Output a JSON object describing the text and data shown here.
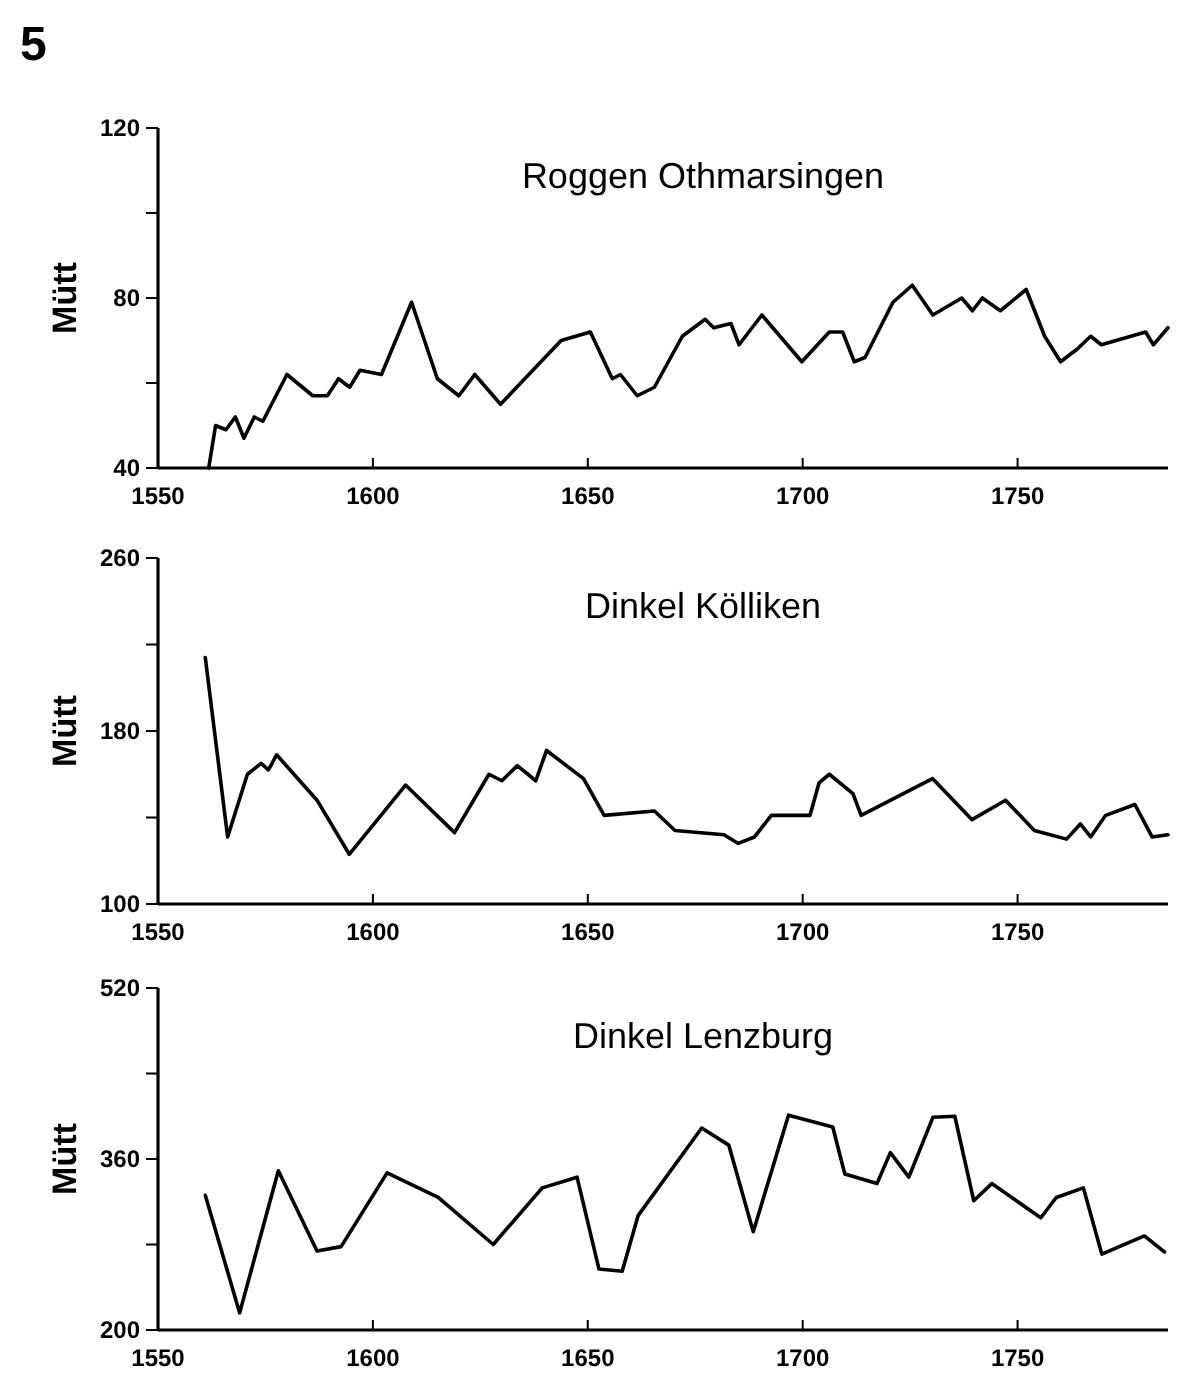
{
  "chart_data": [
    {
      "type": "line",
      "title": "Roggen   Othmarsingen",
      "ylabel": "Mütt",
      "annotations": [
        "5"
      ],
      "color": "#000000",
      "xlim": [
        1550,
        1785
      ],
      "xticks": [
        1550,
        1600,
        1650,
        1700,
        1750
      ],
      "ylim": [
        40,
        120
      ],
      "yticks": [
        40,
        {
          "value": 60,
          "label": null
        },
        80,
        {
          "value": 100,
          "label": null
        },
        120
      ],
      "x": [
        1561.8,
        1563.4,
        1565.8,
        1568,
        1570,
        1572.4,
        1574.4,
        1580,
        1586,
        1589.4,
        1592,
        1594.6,
        1597,
        1602,
        1609,
        1615,
        1620,
        1623.7,
        1629.7,
        1643.8,
        1650.6,
        1655.7,
        1657.6,
        1661.5,
        1665.5,
        1672,
        1677.3,
        1679.3,
        1683.3,
        1685.2,
        1690.5,
        1699.8,
        1706.2,
        1709.3,
        1712,
        1714.5,
        1721,
        1725.5,
        1730.3,
        1737,
        1739.5,
        1741.8,
        1746,
        1752,
        1756.3,
        1760,
        1763.9,
        1767,
        1769.5,
        1779.8,
        1781.6,
        1785
      ],
      "values": [
        40,
        50,
        49,
        52,
        47,
        52,
        51,
        62,
        57,
        57,
        61,
        59,
        63,
        62,
        79,
        61,
        57,
        62,
        55,
        70,
        72,
        61,
        62,
        57,
        59,
        71,
        75,
        73,
        74,
        69,
        76,
        65,
        72,
        72,
        65,
        66,
        79,
        83,
        76,
        80,
        77,
        80,
        77,
        82,
        71,
        65,
        68,
        71,
        69,
        72,
        69,
        73
      ]
    },
    {
      "type": "line",
      "title": "Dinkel   Kölliken",
      "ylabel": "Mütt",
      "color": "#000000",
      "xlim": [
        1550,
        1785
      ],
      "xticks": [
        1550,
        1600,
        1650,
        1700,
        1750
      ],
      "ylim": [
        100,
        260
      ],
      "yticks": [
        100,
        {
          "value": 140,
          "label": null
        },
        180,
        {
          "value": 220,
          "label": null
        },
        260
      ],
      "x": [
        1561,
        1566.2,
        1570.8,
        1574,
        1575.7,
        1577.6,
        1587,
        1594.5,
        1607.6,
        1619,
        1627,
        1630,
        1633.6,
        1637.9,
        1640.4,
        1649,
        1653.8,
        1665.5,
        1670.3,
        1681.7,
        1685,
        1688.8,
        1692.7,
        1701.7,
        1703.8,
        1706.2,
        1711.7,
        1713.6,
        1730.2,
        1739.4,
        1747.2,
        1753.9,
        1761.4,
        1764.6,
        1767,
        1770.5,
        1777.3,
        1781.3,
        1785
      ],
      "values": [
        214,
        131,
        160,
        165,
        162,
        169,
        148,
        123,
        155,
        133,
        160,
        157,
        164,
        157,
        171,
        158,
        141,
        143,
        134,
        132,
        128,
        131,
        141,
        141,
        156,
        160,
        151,
        141,
        158,
        139,
        148,
        134,
        130,
        137,
        131,
        141,
        146,
        131,
        132
      ]
    },
    {
      "type": "line",
      "title": "Dinkel   Lenzburg",
      "ylabel": "Mütt",
      "color": "#000000",
      "xlim": [
        1550,
        1785
      ],
      "xticks": [
        1550,
        1600,
        1650,
        1700,
        1750
      ],
      "ylim": [
        200,
        520
      ],
      "yticks": [
        200,
        {
          "value": 280,
          "label": null
        },
        360,
        {
          "value": 440,
          "label": null
        },
        520
      ],
      "x": [
        1561,
        1569,
        1578,
        1587,
        1592.6,
        1603.3,
        1615.2,
        1628,
        1639.4,
        1647.5,
        1652.6,
        1658,
        1661.7,
        1676.5,
        1682.8,
        1688.5,
        1696.7,
        1707,
        1709.8,
        1717.3,
        1720.4,
        1724.7,
        1730.3,
        1735.4,
        1739.8,
        1744,
        1755.4,
        1759,
        1765.3,
        1769.6,
        1779.5,
        1784.2
      ],
      "values": [
        326,
        216,
        349,
        274,
        278,
        347,
        324,
        280,
        333,
        343,
        257,
        255,
        307,
        389,
        373,
        292,
        401,
        390,
        346,
        337,
        366,
        343,
        399,
        400,
        321,
        337,
        305,
        324,
        333,
        271,
        288,
        273
      ]
    }
  ]
}
